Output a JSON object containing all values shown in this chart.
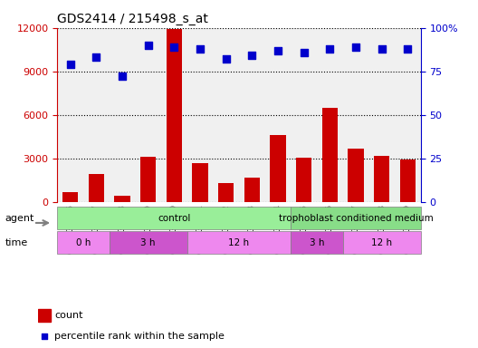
{
  "title": "GDS2414 / 215498_s_at",
  "samples": [
    "GSM136126",
    "GSM136127",
    "GSM136128",
    "GSM136129",
    "GSM136130",
    "GSM136131",
    "GSM136132",
    "GSM136133",
    "GSM136134",
    "GSM136135",
    "GSM136136",
    "GSM136137",
    "GSM136138",
    "GSM136139"
  ],
  "counts": [
    700,
    1900,
    400,
    3100,
    11900,
    2700,
    1300,
    1700,
    4600,
    3050,
    6500,
    3700,
    3150,
    2900
  ],
  "percentiles": [
    79,
    83,
    72,
    90,
    89,
    88,
    82,
    84,
    87,
    86,
    88,
    89,
    88,
    88
  ],
  "bar_color": "#cc0000",
  "dot_color": "#0000cc",
  "ylim_left": [
    0,
    12000
  ],
  "ylim_right": [
    0,
    100
  ],
  "yticks_left": [
    0,
    3000,
    6000,
    9000,
    12000
  ],
  "ytick_labels_left": [
    "0",
    "3000",
    "6000",
    "9000",
    "12000"
  ],
  "yticks_right": [
    0,
    25,
    50,
    75,
    100
  ],
  "ytick_labels_right": [
    "0",
    "25",
    "50",
    "75",
    "100%"
  ],
  "agent_groups": [
    {
      "label": "control",
      "start": 0,
      "end": 9,
      "color": "#99ee99"
    },
    {
      "label": "trophoblast conditioned medium",
      "start": 9,
      "end": 14,
      "color": "#99ee99"
    }
  ],
  "time_groups": [
    {
      "label": "0 h",
      "start": 0,
      "end": 2,
      "color": "#ee88ee"
    },
    {
      "label": "3 h",
      "start": 2,
      "end": 5,
      "color": "#cc55cc"
    },
    {
      "label": "12 h",
      "start": 5,
      "end": 9,
      "color": "#ee88ee"
    },
    {
      "label": "3 h",
      "start": 9,
      "end": 11,
      "color": "#cc55cc"
    },
    {
      "label": "12 h",
      "start": 11,
      "end": 14,
      "color": "#ee88ee"
    }
  ],
  "legend_count_color": "#cc0000",
  "legend_dot_color": "#0000cc",
  "bg_color": "#ffffff",
  "tick_area_color": "#dddddd",
  "grid_color": "#000000",
  "left_axis_color": "#cc0000",
  "right_axis_color": "#0000cc"
}
